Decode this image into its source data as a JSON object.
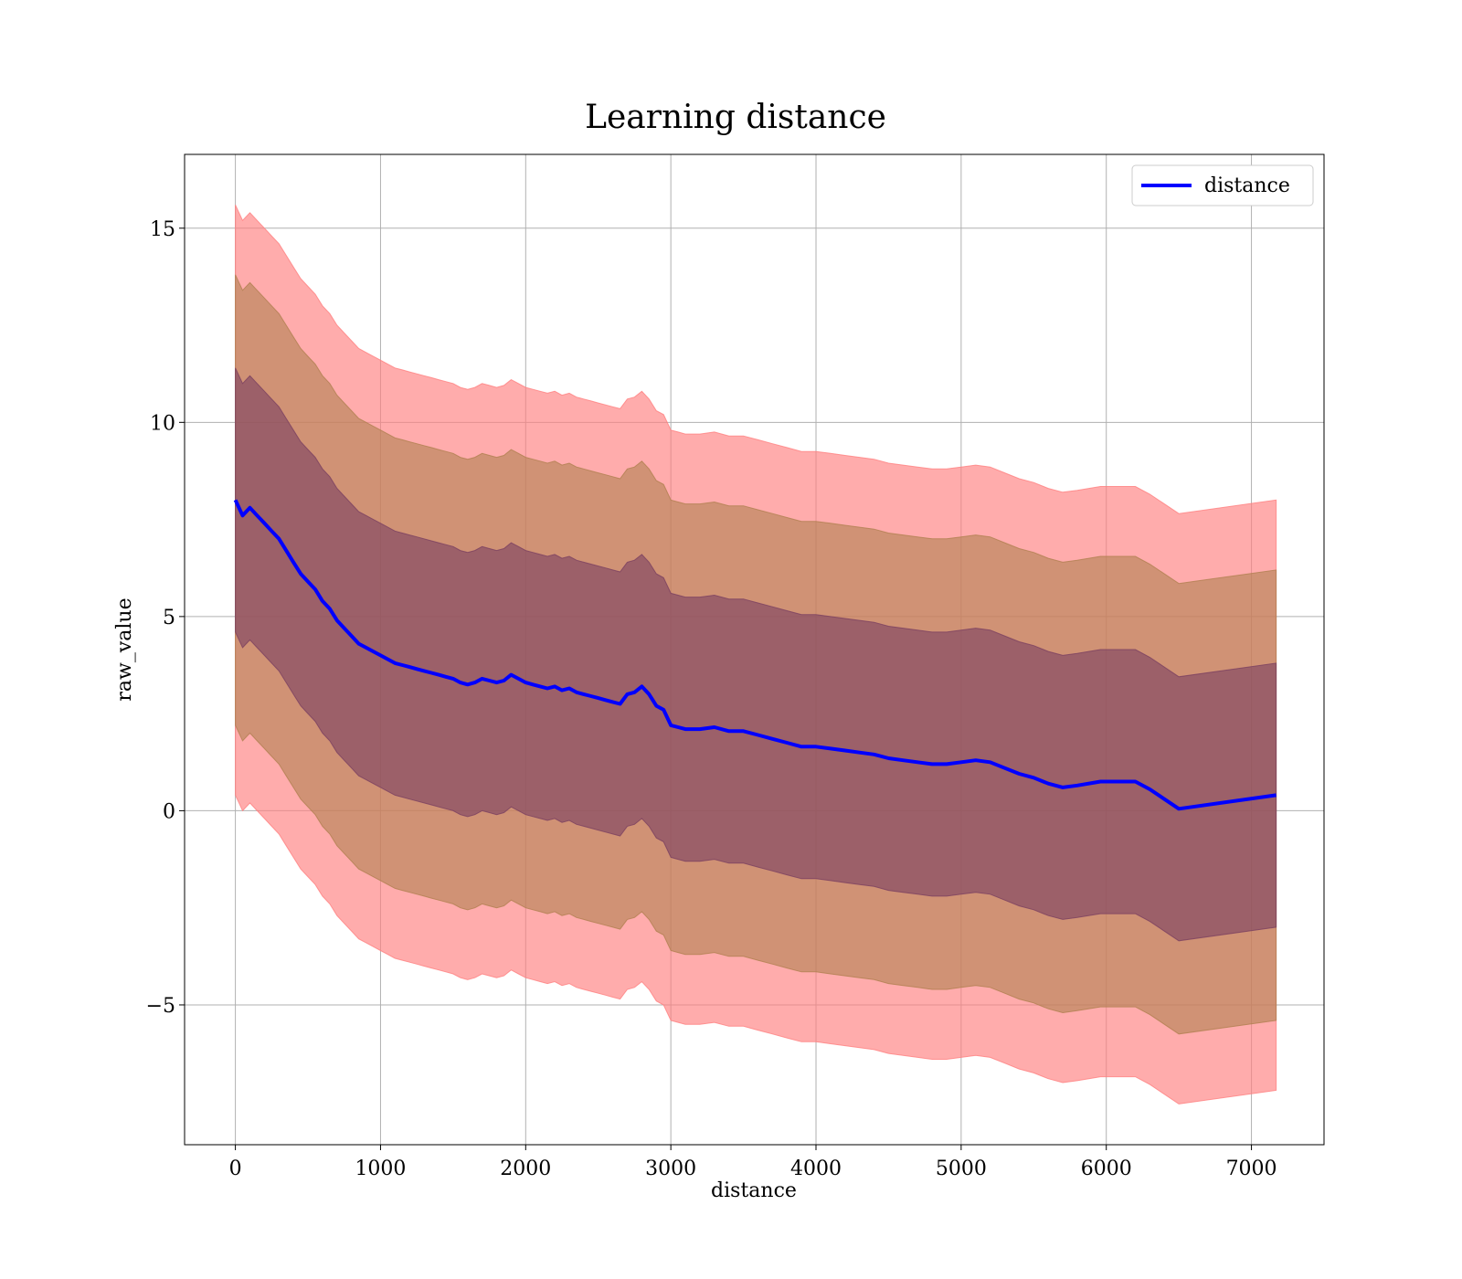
{
  "chart_data": {
    "type": "line",
    "title": "Learning distance",
    "xlabel": "distance",
    "ylabel": "raw_value",
    "xlim": [
      -350,
      7500
    ],
    "ylim": [
      -8.6,
      16.9
    ],
    "x_ticks": [
      0,
      1000,
      2000,
      3000,
      4000,
      5000,
      6000,
      7000
    ],
    "x_tick_labels": [
      "0",
      "1000",
      "2000",
      "3000",
      "4000",
      "5000",
      "6000",
      "7000"
    ],
    "y_ticks": [
      -5,
      0,
      5,
      10,
      15
    ],
    "y_tick_labels": [
      "−5",
      "0",
      "5",
      "10",
      "15"
    ],
    "grid": true,
    "legend": {
      "placement": "top-right",
      "entries": [
        "distance"
      ]
    },
    "colors": {
      "line": "#0000ff",
      "band_outer": "#ff8080",
      "band_middle": "#b08050",
      "band_inner": "#7a4060"
    },
    "series": [
      {
        "name": "distance",
        "x": [
          0,
          50,
          100,
          150,
          200,
          250,
          300,
          350,
          400,
          450,
          500,
          550,
          600,
          650,
          700,
          750,
          800,
          850,
          900,
          950,
          1000,
          1050,
          1100,
          1150,
          1200,
          1250,
          1300,
          1350,
          1400,
          1450,
          1500,
          1550,
          1600,
          1650,
          1700,
          1750,
          1800,
          1850,
          1900,
          1950,
          2000,
          2050,
          2100,
          2150,
          2200,
          2250,
          2300,
          2350,
          2400,
          2450,
          2500,
          2550,
          2600,
          2650,
          2700,
          2750,
          2800,
          2850,
          2900,
          2950,
          3000,
          3050,
          3100,
          3200,
          3300,
          3400,
          3500,
          3600,
          3700,
          3800,
          3900,
          4000,
          4100,
          4200,
          4300,
          4400,
          4500,
          4600,
          4700,
          4800,
          4900,
          5000,
          5100,
          5200,
          5300,
          5400,
          5500,
          5600,
          5700,
          5800,
          5960,
          6200,
          6300,
          6500,
          7170
        ],
        "y": [
          8.0,
          7.6,
          7.8,
          7.6,
          7.4,
          7.2,
          7.0,
          6.7,
          6.4,
          6.1,
          5.9,
          5.7,
          5.4,
          5.2,
          4.9,
          4.7,
          4.5,
          4.3,
          4.2,
          4.1,
          4.0,
          3.9,
          3.8,
          3.75,
          3.7,
          3.65,
          3.6,
          3.55,
          3.5,
          3.45,
          3.4,
          3.3,
          3.25,
          3.3,
          3.4,
          3.35,
          3.3,
          3.35,
          3.5,
          3.4,
          3.3,
          3.25,
          3.2,
          3.15,
          3.2,
          3.1,
          3.15,
          3.05,
          3.0,
          2.95,
          2.9,
          2.85,
          2.8,
          2.75,
          3.0,
          3.05,
          3.2,
          3.0,
          2.7,
          2.6,
          2.2,
          2.15,
          2.1,
          2.1,
          2.15,
          2.05,
          2.05,
          1.95,
          1.85,
          1.75,
          1.65,
          1.65,
          1.6,
          1.55,
          1.5,
          1.45,
          1.35,
          1.3,
          1.25,
          1.2,
          1.2,
          1.25,
          1.3,
          1.25,
          1.1,
          0.95,
          0.85,
          0.7,
          0.6,
          0.65,
          0.75,
          0.75,
          0.55,
          0.05,
          0.4
        ]
      }
    ],
    "bands": [
      {
        "level": "outer",
        "half_width_start": 7.6,
        "half_width_end": 7.6
      },
      {
        "level": "middle",
        "half_width_start": 5.8,
        "half_width_end": 5.8
      },
      {
        "level": "inner",
        "half_width_start": 3.4,
        "half_width_end": 3.4
      }
    ]
  }
}
